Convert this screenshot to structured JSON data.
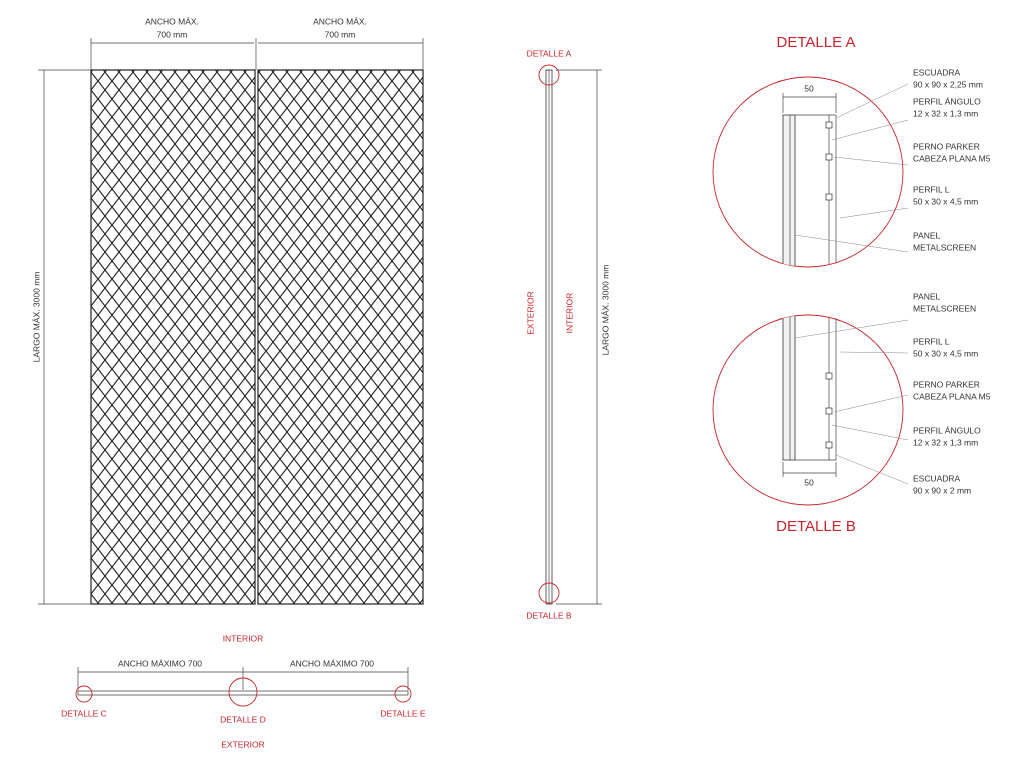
{
  "front_view": {
    "width_labels": [
      {
        "title": "ANCHO MÁX.",
        "value": "700 mm"
      },
      {
        "title": "ANCHO MÁX.",
        "value": "700 mm"
      }
    ],
    "height_label": "LARGO MÁX. 3000 mm"
  },
  "side_view": {
    "top_callout": "DETALLE A",
    "bottom_callout": "DETALLE B",
    "exterior": "EXTERIOR",
    "interior": "INTERIOR",
    "height_label": "LARGO MÁX. 3000 mm"
  },
  "plan_view": {
    "interior": "INTERIOR",
    "width_labels": [
      "ANCHO MÁXIMO 700",
      "ANCHO MÁXIMO 700"
    ],
    "callouts": [
      "DETALLE C",
      "DETALLE D",
      "DETALLE E"
    ],
    "exterior": "EXTERIOR"
  },
  "details": [
    {
      "title": "DETALLE A",
      "dimension": "50",
      "labels": [
        [
          "ESCUADRA",
          "90 x 90 x 2,25 mm"
        ],
        [
          "PERFIL ÁNGULO",
          "12 x 32 x 1,3 mm"
        ],
        [
          "PERNO PARKER",
          "CABEZA PLANA M5"
        ],
        [
          "PERFIL L",
          "50 x 30 x 4,5 mm"
        ],
        [
          "PANEL",
          "METALSCREEN"
        ]
      ]
    },
    {
      "title": "DETALLE B",
      "dimension": "50",
      "labels": [
        [
          "PANEL",
          "METALSCREEN"
        ],
        [
          "PERFIL L",
          "50 x 30 x 4,5 mm"
        ],
        [
          "PERNO PARKER",
          "CABEZA PLANA M5"
        ],
        [
          "PERFIL ÁNGULO",
          "12 x 32 x 1,3 mm"
        ],
        [
          "ESCUADRA",
          "90 x 90 x 2 mm"
        ]
      ]
    }
  ]
}
